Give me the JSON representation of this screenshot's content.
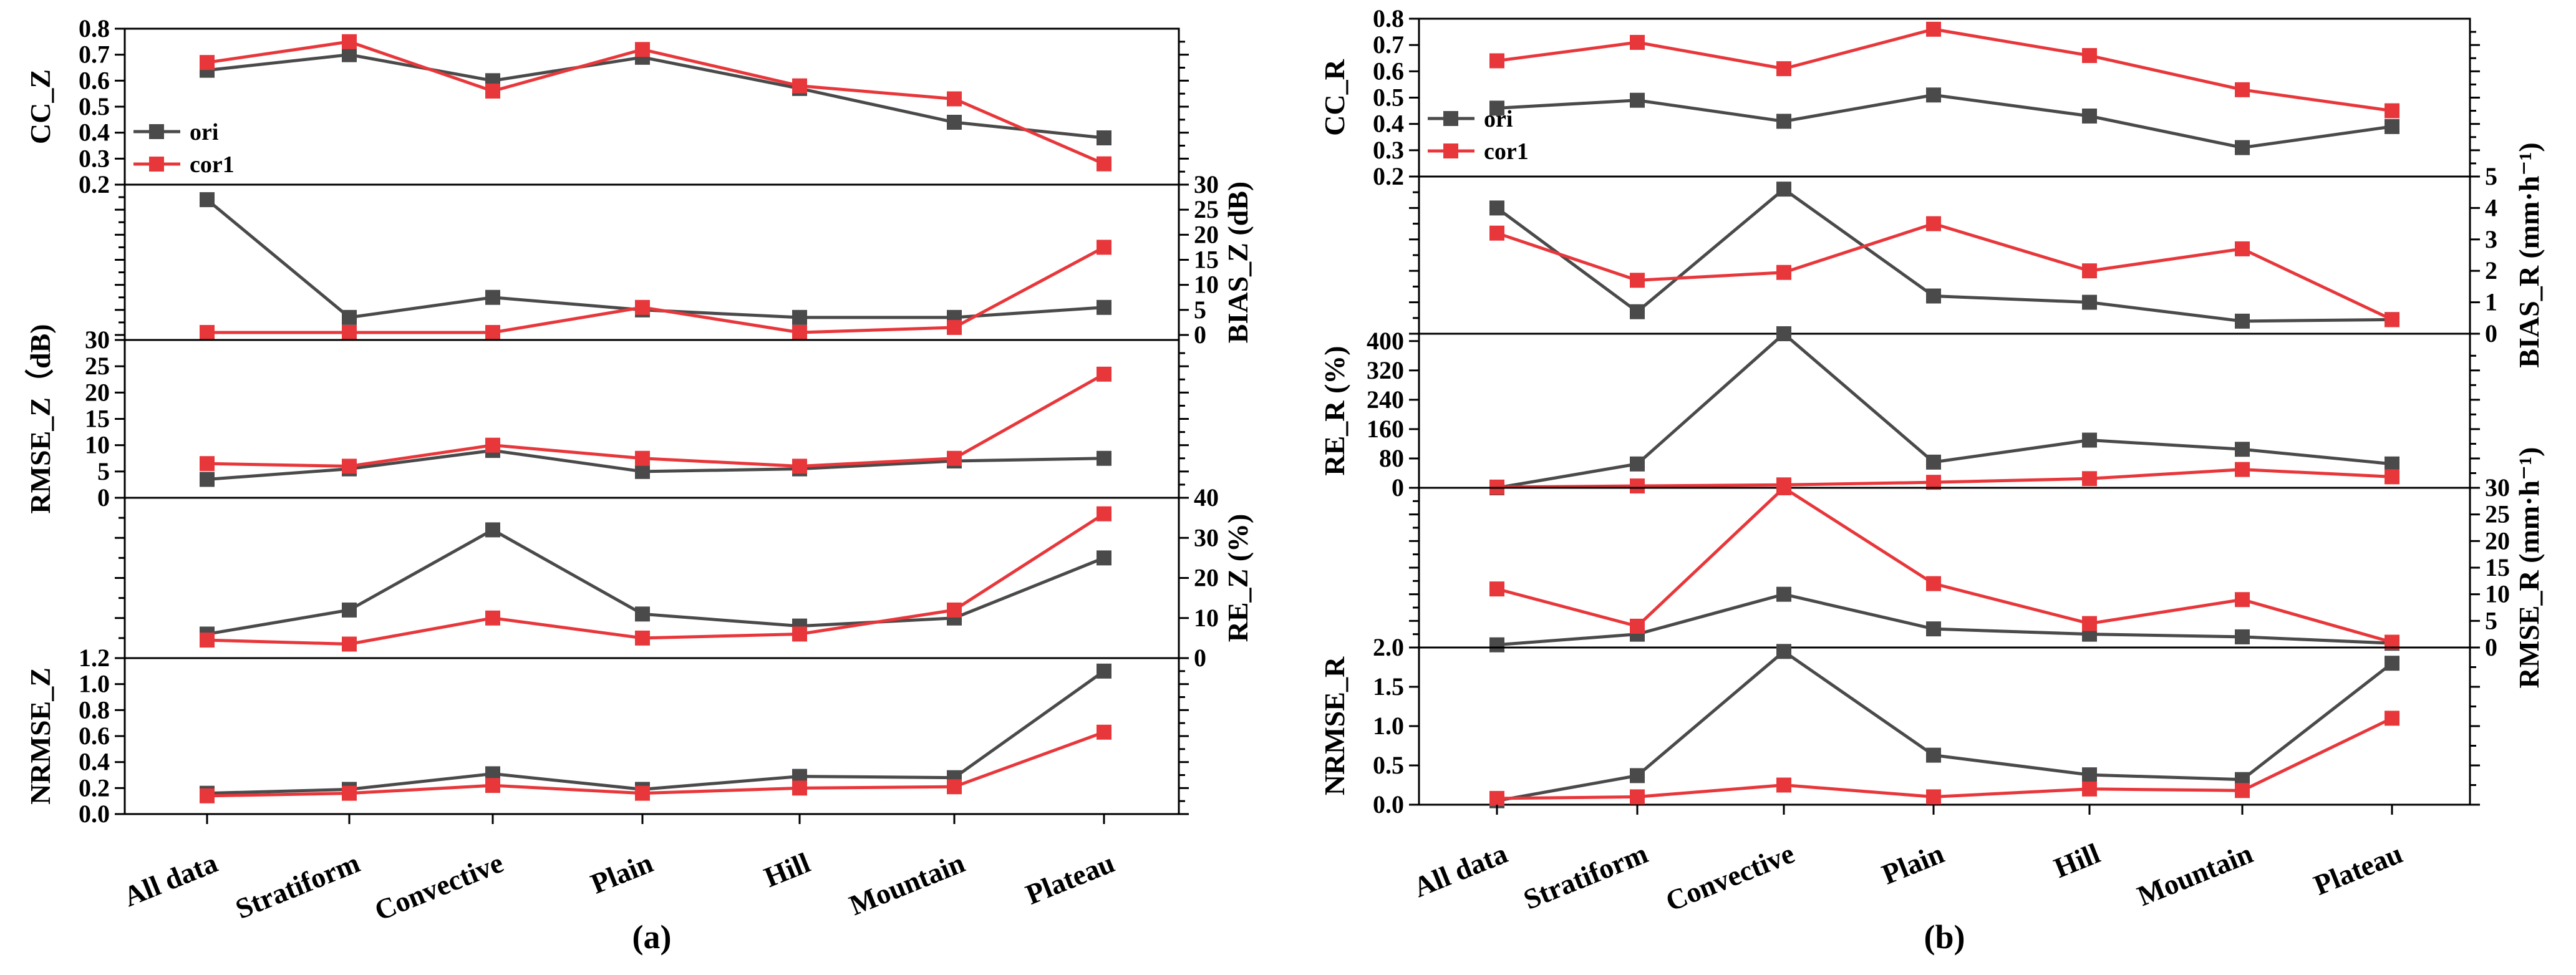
{
  "colors": {
    "ori": "#4a4a4a",
    "cor1": "#e8373b",
    "axis": "#000000"
  },
  "chart_data": [
    {
      "panel_label": "(a)",
      "type": "line",
      "categories": [
        "All data",
        "Stratiform",
        "Convective",
        "Plain",
        "Hill",
        "Mountain",
        "Plateau"
      ],
      "subplots": [
        {
          "ylabel": "CC_Z",
          "ylabel_side": "left",
          "ylim": [
            0.2,
            0.8
          ],
          "ticks": [
            0.2,
            0.3,
            0.4,
            0.5,
            0.6,
            0.7,
            0.8
          ],
          "tick_labels": [
            "0.2",
            "0.3",
            "0.4",
            "0.5",
            "0.6",
            "0.7",
            "0.8"
          ],
          "legend": [
            "ori",
            "cor1"
          ],
          "series": [
            {
              "name": "ori",
              "values": [
                0.64,
                0.7,
                0.6,
                0.69,
                0.57,
                0.44,
                0.38
              ]
            },
            {
              "name": "cor1",
              "values": [
                0.67,
                0.75,
                0.56,
                0.72,
                0.58,
                0.53,
                0.28
              ]
            }
          ]
        },
        {
          "ylabel": "BIAS_Z (dB)",
          "ylabel_side": "right",
          "ylim": [
            -1,
            30
          ],
          "ticks": [
            0,
            5,
            10,
            15,
            20,
            25,
            30
          ],
          "tick_labels": [
            "0",
            "5",
            "10",
            "15",
            "20",
            "25",
            "30"
          ],
          "series": [
            {
              "name": "ori",
              "values": [
                27.0,
                3.5,
                7.5,
                5.0,
                3.5,
                3.5,
                5.5
              ]
            },
            {
              "name": "cor1",
              "values": [
                0.5,
                0.5,
                0.5,
                5.5,
                0.5,
                1.5,
                17.5
              ]
            }
          ]
        },
        {
          "ylabel": "RMSE_Z（dB)",
          "ylabel_side": "left",
          "ylim": [
            0,
            30
          ],
          "ticks": [
            0,
            5,
            10,
            15,
            20,
            25,
            30
          ],
          "tick_labels": [
            "0",
            "5",
            "10",
            "15",
            "20",
            "25",
            "30"
          ],
          "series": [
            {
              "name": "ori",
              "values": [
                3.5,
                5.5,
                9.0,
                5.0,
                5.5,
                7.0,
                7.5
              ]
            },
            {
              "name": "cor1",
              "values": [
                6.5,
                6.0,
                10.0,
                7.5,
                6.0,
                7.5,
                23.5
              ]
            }
          ]
        },
        {
          "ylabel": "RE_Z (%)",
          "ylabel_side": "right",
          "ylim": [
            0,
            40
          ],
          "ticks": [
            0,
            10,
            20,
            30,
            40
          ],
          "tick_labels": [
            "0",
            "10",
            "20",
            "30",
            "40"
          ],
          "series": [
            {
              "name": "ori",
              "values": [
                6.0,
                12.0,
                32.0,
                11.0,
                8.0,
                10.0,
                25.0
              ]
            },
            {
              "name": "cor1",
              "values": [
                4.5,
                3.5,
                10.0,
                5.0,
                6.0,
                12.0,
                36.0
              ]
            }
          ]
        },
        {
          "ylabel": "NRMSE_Z",
          "ylabel_side": "left",
          "ylim": [
            0,
            1.2
          ],
          "ticks": [
            0,
            0.2,
            0.4,
            0.6,
            0.8,
            1.0,
            1.2
          ],
          "tick_labels": [
            "0.0",
            "0.2",
            "0.4",
            "0.6",
            "0.8",
            "1.0",
            "1.2"
          ],
          "series": [
            {
              "name": "ori",
              "values": [
                0.16,
                0.19,
                0.31,
                0.19,
                0.29,
                0.28,
                1.1
              ]
            },
            {
              "name": "cor1",
              "values": [
                0.14,
                0.16,
                0.22,
                0.16,
                0.2,
                0.21,
                0.63
              ]
            }
          ]
        }
      ]
    },
    {
      "panel_label": "(b)",
      "type": "line",
      "categories": [
        "All data",
        "Stratiform",
        "Convective",
        "Plain",
        "Hill",
        "Mountain",
        "Plateau"
      ],
      "subplots": [
        {
          "ylabel": "CC_R",
          "ylabel_side": "left",
          "ylim": [
            0.2,
            0.8
          ],
          "ticks": [
            0.2,
            0.3,
            0.4,
            0.5,
            0.6,
            0.7,
            0.8
          ],
          "tick_labels": [
            "0.2",
            "0.3",
            "0.4",
            "0.5",
            "0.6",
            "0.7",
            "0.8"
          ],
          "legend": [
            "ori",
            "cor1"
          ],
          "series": [
            {
              "name": "ori",
              "values": [
                0.46,
                0.49,
                0.41,
                0.51,
                0.43,
                0.31,
                0.39
              ]
            },
            {
              "name": "cor1",
              "values": [
                0.64,
                0.71,
                0.61,
                0.76,
                0.66,
                0.53,
                0.45
              ]
            }
          ]
        },
        {
          "ylabel": "BIAS_R (mm·h⁻¹)",
          "ylabel_side": "right",
          "ylim": [
            0,
            5
          ],
          "ticks": [
            0,
            1,
            2,
            3,
            4,
            5
          ],
          "tick_labels": [
            "0",
            "1",
            "2",
            "3",
            "4",
            "5"
          ],
          "series": [
            {
              "name": "ori",
              "values": [
                4.0,
                0.7,
                4.6,
                1.2,
                1.0,
                0.4,
                0.45
              ]
            },
            {
              "name": "cor1",
              "values": [
                3.2,
                1.7,
                1.95,
                3.5,
                2.0,
                2.7,
                0.45
              ]
            }
          ]
        },
        {
          "ylabel": "RE_R (%)",
          "ylabel_side": "left",
          "ylim": [
            0,
            420
          ],
          "ticks": [
            0,
            80,
            160,
            240,
            320,
            400
          ],
          "tick_labels": [
            "0",
            "80",
            "160",
            "240",
            "320",
            "400"
          ],
          "series": [
            {
              "name": "ori",
              "values": [
                0,
                65,
                420,
                70,
                130,
                105,
                65
              ]
            },
            {
              "name": "cor1",
              "values": [
                2,
                5,
                8,
                15,
                25,
                50,
                30
              ]
            }
          ]
        },
        {
          "ylabel": "RMSE_R (mm·h⁻¹)",
          "ylabel_side": "right",
          "ylim": [
            0,
            30
          ],
          "ticks": [
            0,
            5,
            10,
            15,
            20,
            25,
            30
          ],
          "tick_labels": [
            "0",
            "5",
            "10",
            "15",
            "20",
            "25",
            "30"
          ],
          "series": [
            {
              "name": "ori",
              "values": [
                0.5,
                2.5,
                10.0,
                3.5,
                2.5,
                2.0,
                0.8
              ]
            },
            {
              "name": "cor1",
              "values": [
                11.0,
                4.0,
                30.0,
                12.0,
                4.5,
                9.0,
                1.0
              ]
            }
          ]
        },
        {
          "ylabel": "NRMSE_R",
          "ylabel_side": "left",
          "ylim": [
            0,
            2.0
          ],
          "ticks": [
            0,
            0.5,
            1.0,
            1.5,
            2.0
          ],
          "tick_labels": [
            "0.0",
            "0.5",
            "1.0",
            "1.5",
            "2.0"
          ],
          "series": [
            {
              "name": "ori",
              "values": [
                0.05,
                0.37,
                1.95,
                0.63,
                0.38,
                0.32,
                1.8
              ]
            },
            {
              "name": "cor1",
              "values": [
                0.08,
                0.1,
                0.25,
                0.1,
                0.2,
                0.18,
                1.1
              ]
            }
          ]
        }
      ]
    }
  ]
}
